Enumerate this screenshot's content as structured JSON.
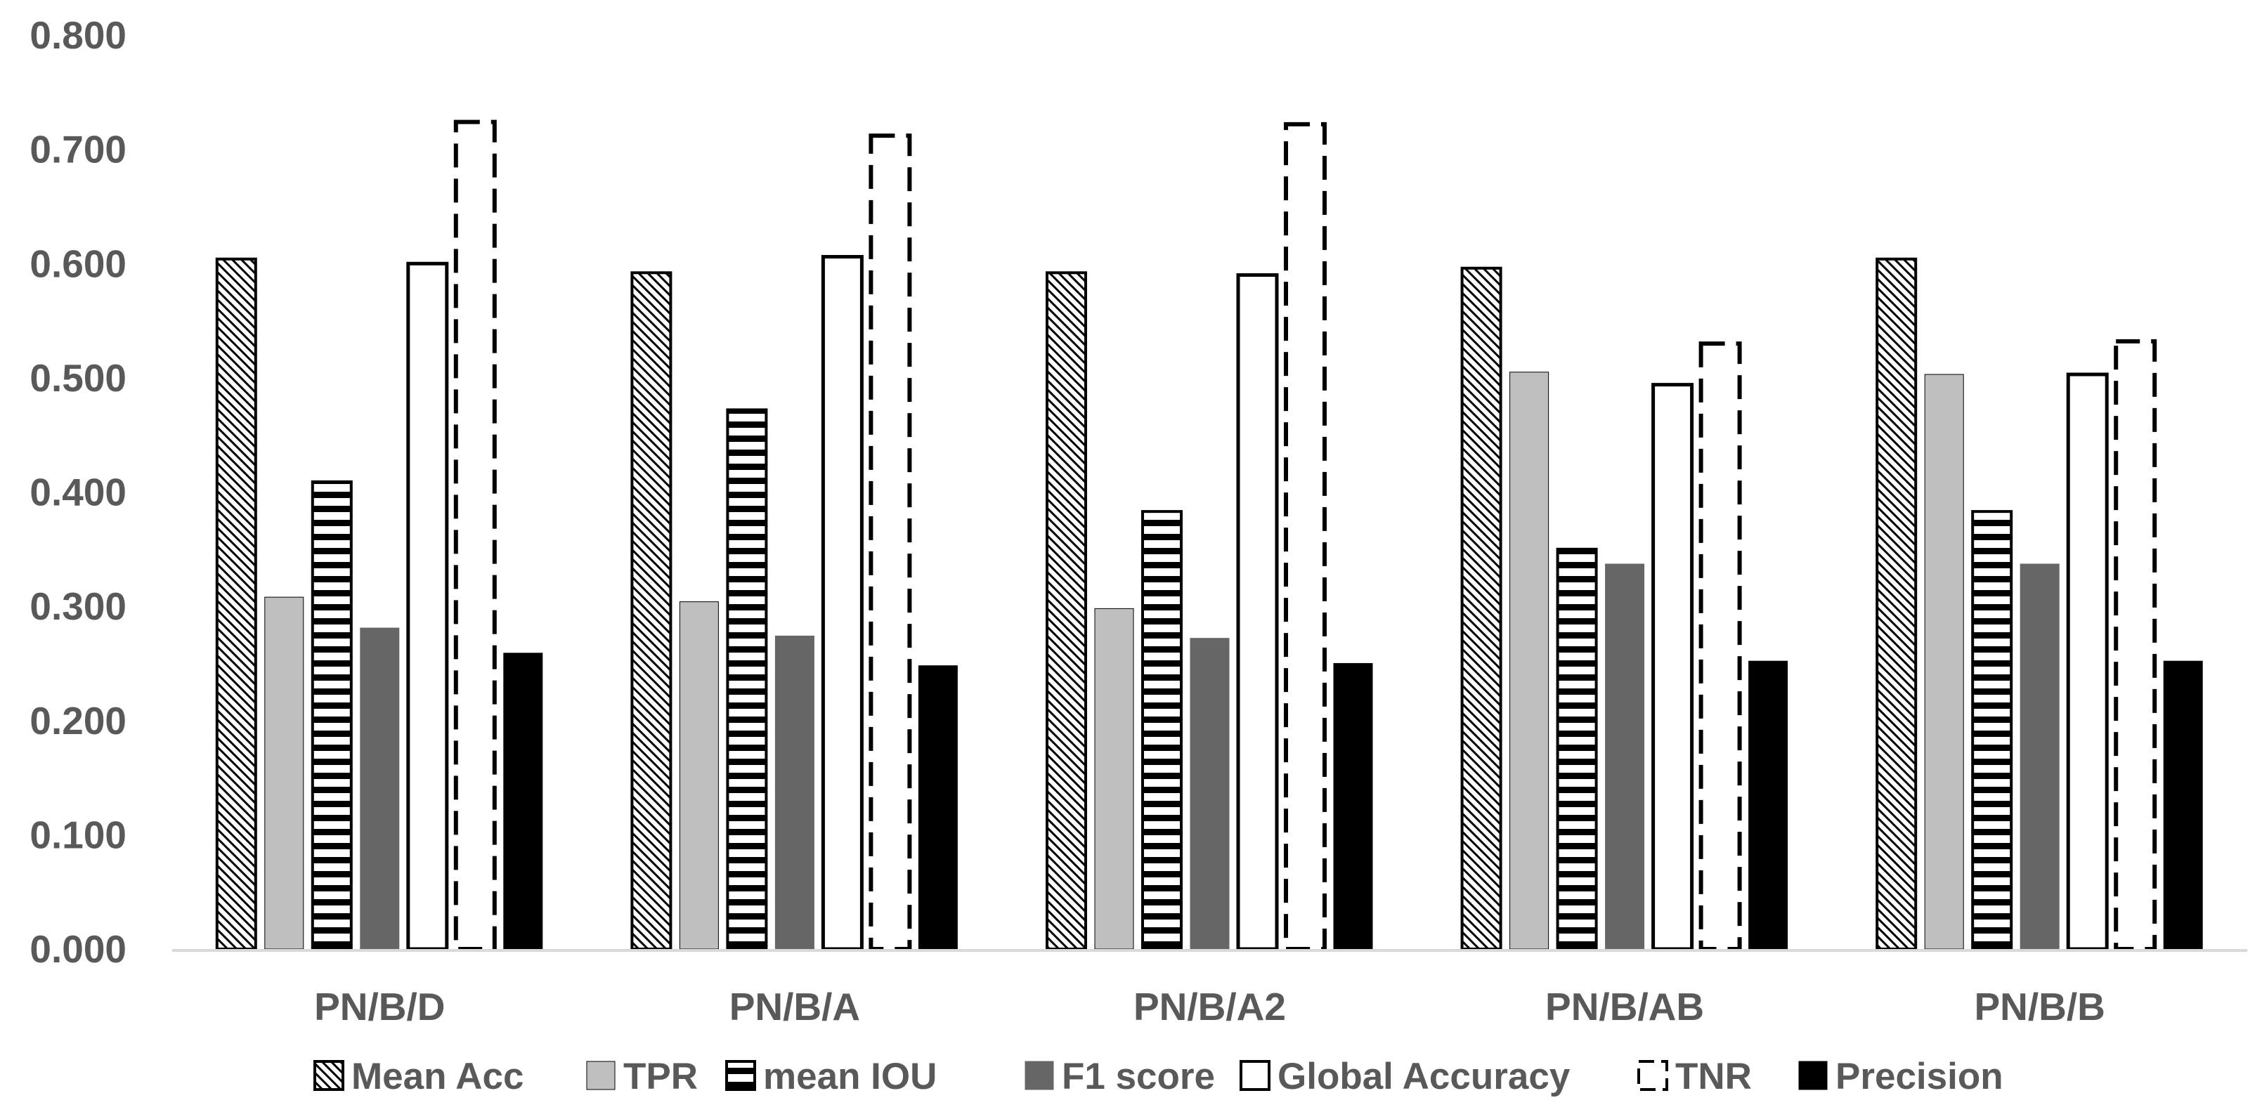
{
  "chart_data": {
    "type": "bar",
    "title": "",
    "xlabel": "",
    "ylabel": "",
    "ylim": [
      0,
      0.8
    ],
    "yticks": [
      "0.000",
      "0.100",
      "0.200",
      "0.300",
      "0.400",
      "0.500",
      "0.600",
      "0.700",
      "0.800"
    ],
    "grid": false,
    "legend_position": "bottom",
    "categories": [
      "PN/B/D",
      "PN/B/A",
      "PN/B/A2",
      "PN/B/AB",
      "PN/B/B"
    ],
    "series": [
      {
        "name": "Mean Acc",
        "pattern": "diagonal-hatch",
        "values": [
          0.604,
          0.592,
          0.592,
          0.596,
          0.604
        ]
      },
      {
        "name": "TPR",
        "pattern": "solid-light-gray",
        "values": [
          0.308,
          0.304,
          0.298,
          0.505,
          0.503
        ]
      },
      {
        "name": "mean IOU",
        "pattern": "horizontal-stripes",
        "values": [
          0.409,
          0.472,
          0.383,
          0.35,
          0.383
        ]
      },
      {
        "name": "F1 score",
        "pattern": "solid-dark-gray",
        "values": [
          0.281,
          0.274,
          0.272,
          0.337,
          0.337
        ]
      },
      {
        "name": "Global  Accuracy",
        "pattern": "outline",
        "values": [
          0.6,
          0.606,
          0.59,
          0.494,
          0.503
        ]
      },
      {
        "name": "TNR",
        "pattern": "dashed-outline",
        "values": [
          0.724,
          0.712,
          0.722,
          0.53,
          0.532
        ]
      },
      {
        "name": "Precision",
        "pattern": "solid-black",
        "values": [
          0.259,
          0.248,
          0.25,
          0.252,
          0.252
        ]
      }
    ],
    "colors": {
      "text": "#595959",
      "axis": "#d9d9d9",
      "light_gray": "#bfbfbf",
      "dark_gray": "#666666",
      "black": "#000000"
    }
  }
}
